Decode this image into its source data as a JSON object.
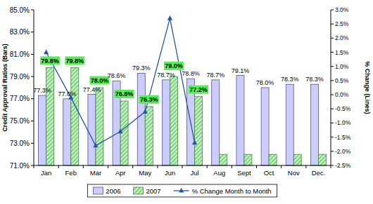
{
  "chart_data": {
    "type": "bar",
    "categories": [
      "Jan",
      "Feb",
      "Mar",
      "Apr",
      "May",
      "Jun",
      "Jul",
      "Aug",
      "Sept",
      "Oct",
      "Nov",
      "Dec."
    ],
    "series": [
      {
        "name": "2006",
        "type": "bar",
        "color": "#ccccff",
        "values": [
          77.3,
          77.0,
          77.4,
          78.6,
          79.3,
          78.7,
          78.8,
          78.7,
          79.1,
          78.0,
          78.3,
          78.3
        ],
        "value_labels": [
          "77.3%",
          "77.0%",
          "77.4%",
          "78.6%",
          "79.3%",
          "78.7%",
          "78.8%",
          "78.7%",
          "79.1%",
          "78.0%",
          "78.3%",
          "78.3%"
        ]
      },
      {
        "name": "2007",
        "type": "bar",
        "color": "#b8f0b8",
        "values": [
          79.8,
          79.8,
          78.0,
          76.8,
          76.3,
          79.0,
          77.2,
          72.0,
          72.0,
          72.0,
          72.0,
          72.0
        ],
        "value_labels": [
          "79.8%",
          "79.8%",
          "78.0%",
          "76.8%",
          "76.3%",
          "79.0%",
          "77.2%",
          null,
          null,
          null,
          null,
          null
        ]
      },
      {
        "name": "% Change Month to Month",
        "type": "line",
        "axis": "y2",
        "color": "#2255aa",
        "marker": "triangle",
        "values": [
          1.5,
          -0.1,
          -1.8,
          -1.3,
          -0.6,
          2.7,
          -1.7,
          null,
          null,
          null,
          null,
          null
        ]
      }
    ],
    "y_label": "Credit Approval Ratios (Bars)",
    "y2_label": "% Change (Lines)",
    "ylim": [
      71,
      85
    ],
    "yticks": [
      {
        "value": 71,
        "label": "71.0%"
      },
      {
        "value": 73,
        "label": "73.0%"
      },
      {
        "value": 75,
        "label": "75.0%"
      },
      {
        "value": 77,
        "label": "77.0%"
      },
      {
        "value": 79,
        "label": "79.0%"
      },
      {
        "value": 81,
        "label": "81.0%"
      },
      {
        "value": 83,
        "label": "83.0%"
      },
      {
        "value": 85,
        "label": "85.0%"
      }
    ],
    "y2lim": [
      -2.5,
      3
    ],
    "y2ticks": [
      {
        "value": -2.5,
        "label": "-2.5%"
      },
      {
        "value": -2,
        "label": "-2.0%"
      },
      {
        "value": -1.5,
        "label": "-1.5%"
      },
      {
        "value": -1,
        "label": "-1.0%"
      },
      {
        "value": -0.5,
        "label": "-0.5%"
      },
      {
        "value": 0,
        "label": "0.0%"
      },
      {
        "value": 0.5,
        "label": "0.5%"
      },
      {
        "value": 1,
        "label": "1.0%"
      },
      {
        "value": 1.5,
        "label": "1.5%"
      },
      {
        "value": 2,
        "label": "2.0%"
      },
      {
        "value": 2.5,
        "label": "2.5%"
      },
      {
        "value": 3,
        "label": "3.0%"
      }
    ],
    "data_labels": true,
    "grid": false,
    "legend": "bottom"
  }
}
